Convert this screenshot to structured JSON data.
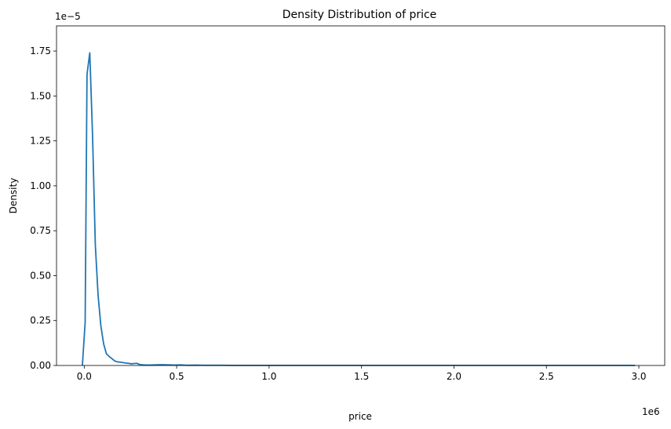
{
  "chart_data": {
    "type": "line",
    "title": "Density Distribution of price",
    "xlabel": "price",
    "ylabel": "Density",
    "x_offset_text": "1e6",
    "y_offset_text": "1e−5",
    "xlim": [
      -150000,
      3140000
    ],
    "ylim": [
      0,
      1.89e-05
    ],
    "x_ticks": [
      0,
      500000,
      1000000,
      1500000,
      2000000,
      2500000,
      3000000
    ],
    "x_tick_labels": [
      "0.0",
      "0.5",
      "1.0",
      "1.5",
      "2.0",
      "2.5",
      "3.0"
    ],
    "y_ticks": [
      0,
      2.5e-06,
      5e-06,
      7.5e-06,
      1e-05,
      1.25e-05,
      1.5e-05,
      1.75e-05
    ],
    "y_tick_labels": [
      "0.00",
      "0.25",
      "0.50",
      "0.75",
      "1.00",
      "1.25",
      "1.50",
      "1.75"
    ],
    "grid": false,
    "series": [
      {
        "color": "#1f77b4",
        "x": [
          -10000,
          5000,
          15000,
          30000,
          45000,
          60000,
          75000,
          90000,
          105000,
          120000,
          135000,
          150000,
          165000,
          180000,
          200000,
          220000,
          240000,
          255000,
          270000,
          285000,
          300000,
          320000,
          350000,
          380000,
          420000,
          460000,
          490000,
          520000,
          560000,
          600000,
          650000,
          700000,
          750000,
          800000,
          900000,
          1000000,
          1200000,
          1400000,
          1600000,
          1800000,
          1950000,
          2100000,
          2300000,
          2500000,
          2700000,
          2850000,
          2950000,
          2980000
        ],
        "y": [
          0,
          2.4e-06,
          1.62e-05,
          1.74e-05,
          1.28e-05,
          6.7e-06,
          3.9e-06,
          2.2e-06,
          1.2e-06,
          6.5e-07,
          5e-07,
          3.8e-07,
          2.5e-07,
          2e-07,
          1.8e-07,
          1.4e-07,
          1.2e-07,
          9e-08,
          1.1e-07,
          1.2e-07,
          5e-08,
          3e-08,
          2e-08,
          3e-08,
          4e-08,
          3e-08,
          2e-08,
          3e-08,
          1e-08,
          2e-08,
          1e-08,
          1e-08,
          1e-08,
          5e-09,
          5e-09,
          5e-09,
          5e-09,
          5e-09,
          5e-09,
          5e-09,
          5e-09,
          5e-09,
          5e-09,
          5e-09,
          5e-09,
          5e-09,
          5e-09,
          0
        ]
      }
    ]
  }
}
